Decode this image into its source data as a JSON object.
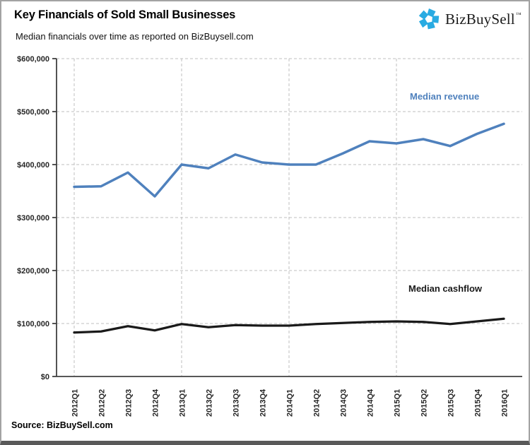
{
  "header": {
    "title": "Key Financials of Sold Small Businesses",
    "subtitle": "Median financials over time as reported on BizBuysell.com"
  },
  "logo": {
    "text": "BizBuySell",
    "trademark": "™",
    "icon": "pinwheel-icon",
    "icon_color": "#29ABE2"
  },
  "annotations": {
    "revenue_label": "Median revenue",
    "cashflow_label": "Median cashflow"
  },
  "source": {
    "label": "Source: BizBuySell.com"
  },
  "colors": {
    "revenue": "#4F81BD",
    "cashflow": "#1A1A1A",
    "gridline": "#BFBFBF",
    "axis": "#404040",
    "tick_text": "#262626"
  },
  "chart_data": {
    "type": "line",
    "title": "Key Financials of Sold Small Businesses",
    "subtitle": "Median financials over time as reported on BizBuysell.com",
    "categories": [
      "2012Q1",
      "2012Q2",
      "2012Q3",
      "2012Q4",
      "2013Q1",
      "2013Q2",
      "2013Q3",
      "2013Q4",
      "2014Q1",
      "2014Q2",
      "2014Q3",
      "2014Q4",
      "2015Q1",
      "2015Q2",
      "2015Q3",
      "2015Q4",
      "2016Q1"
    ],
    "series": [
      {
        "id": "median-revenue",
        "name": "Median revenue",
        "color": "#4F81BD",
        "stroke_width": 3.5,
        "values": [
          358000,
          359000,
          385000,
          340000,
          400000,
          393000,
          419000,
          404000,
          400000,
          400000,
          421000,
          444000,
          440000,
          448000,
          435000,
          458000,
          477000
        ]
      },
      {
        "id": "median-cashflow",
        "name": "Median cashflow",
        "color": "#1A1A1A",
        "stroke_width": 3.25,
        "values": [
          83000,
          85000,
          95000,
          87000,
          99000,
          93000,
          97000,
          96000,
          96000,
          99000,
          101000,
          103000,
          104000,
          103000,
          99000,
          104000,
          109000
        ]
      }
    ],
    "ylim": [
      0,
      600000
    ],
    "y_ticks": [
      {
        "value": 0,
        "label": "$0"
      },
      {
        "value": 100000,
        "label": "$100,000"
      },
      {
        "value": 200000,
        "label": "$200,000"
      },
      {
        "value": 300000,
        "label": "$300,000"
      },
      {
        "value": 400000,
        "label": "$400,000"
      },
      {
        "value": 500000,
        "label": "$500,000"
      },
      {
        "value": 600000,
        "label": "$600,000"
      }
    ],
    "x_gridlines_at": [
      "2012Q1",
      "2013Q1",
      "2014Q1",
      "2015Q1"
    ],
    "grid": "dashed",
    "legend": "inline-labels",
    "xlabel": "",
    "ylabel": ""
  }
}
